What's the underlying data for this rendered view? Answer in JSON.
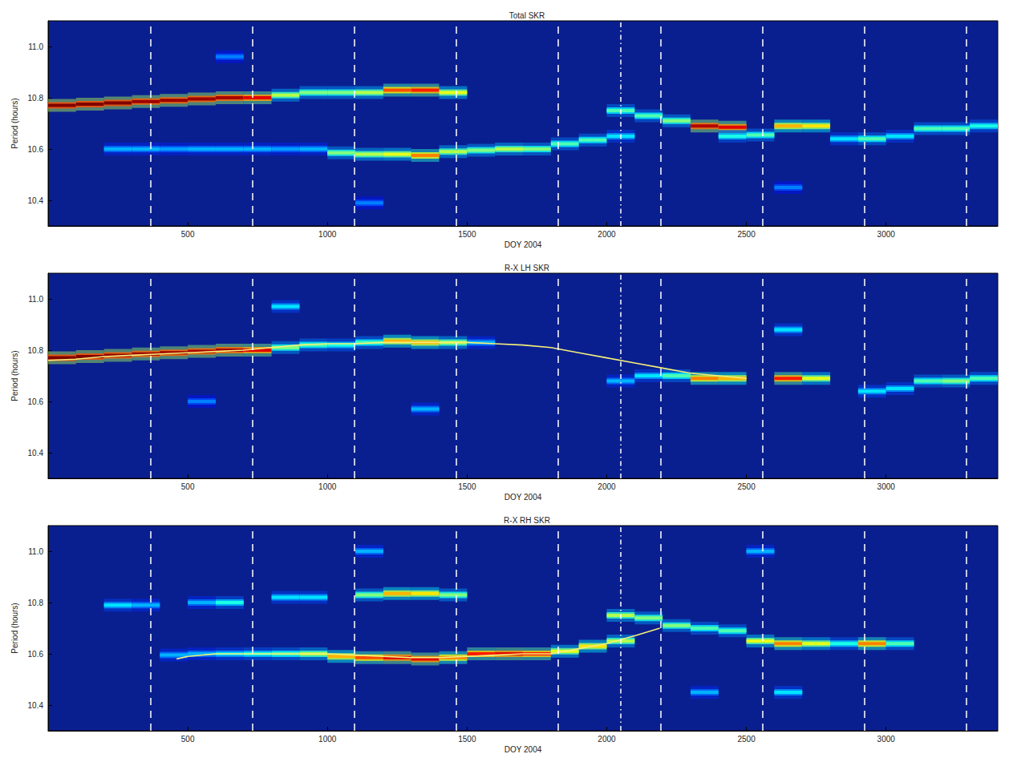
{
  "chart_data": [
    {
      "type": "heatmap",
      "title": "Total SKR",
      "xlabel": "DOY 2004",
      "ylabel": "Period (hours)",
      "xlim": [
        0,
        3400
      ],
      "xticks": [
        500,
        1000,
        1500,
        2000,
        2500,
        3000
      ],
      "ylim": [
        10.3,
        11.1
      ],
      "yticks": [
        10.4,
        10.6,
        10.8,
        {
          "value": 11,
          "label": "11.0"
        }
      ],
      "grid": false,
      "zlim": [
        0,
        1
      ],
      "vlines": [
        {
          "x": 366,
          "line_style": "dashed"
        },
        {
          "x": 731,
          "line_style": "dashed"
        },
        {
          "x": 1096,
          "line_style": "dashed"
        },
        {
          "x": 1461,
          "line_style": "dashed"
        },
        {
          "x": 1827,
          "line_style": "dashed"
        },
        {
          "x": 2050,
          "line_style": "dashdot"
        },
        {
          "x": 2192,
          "line_style": "dashed"
        },
        {
          "x": 2557,
          "line_style": "dashed"
        },
        {
          "x": 2922,
          "line_style": "dashed"
        },
        {
          "x": 3288,
          "line_style": "dashed"
        }
      ],
      "cells": [
        [
          50,
          10.77,
          1.0
        ],
        [
          150,
          10.775,
          1.0
        ],
        [
          250,
          10.78,
          1.0
        ],
        [
          350,
          10.785,
          0.97
        ],
        [
          450,
          10.79,
          0.97
        ],
        [
          550,
          10.795,
          0.97
        ],
        [
          650,
          10.8,
          0.96
        ],
        [
          750,
          10.8,
          0.9
        ],
        [
          850,
          10.81,
          0.55
        ],
        [
          950,
          10.82,
          0.5
        ],
        [
          1050,
          10.82,
          0.5
        ],
        [
          1150,
          10.82,
          0.55
        ],
        [
          1250,
          10.83,
          0.8
        ],
        [
          1350,
          10.83,
          0.85
        ],
        [
          1450,
          10.82,
          0.6
        ],
        [
          250,
          10.6,
          0.3
        ],
        [
          350,
          10.6,
          0.3
        ],
        [
          450,
          10.6,
          0.28
        ],
        [
          550,
          10.6,
          0.3
        ],
        [
          650,
          10.6,
          0.3
        ],
        [
          750,
          10.6,
          0.3
        ],
        [
          850,
          10.6,
          0.28
        ],
        [
          950,
          10.6,
          0.3
        ],
        [
          1050,
          10.585,
          0.5
        ],
        [
          1150,
          10.58,
          0.55
        ],
        [
          1250,
          10.58,
          0.6
        ],
        [
          1350,
          10.575,
          0.75
        ],
        [
          1450,
          10.59,
          0.55
        ],
        [
          1550,
          10.595,
          0.5
        ],
        [
          1650,
          10.6,
          0.55
        ],
        [
          1750,
          10.6,
          0.5
        ],
        [
          1850,
          10.62,
          0.45
        ],
        [
          1950,
          10.635,
          0.45
        ],
        [
          2050,
          10.65,
          0.35
        ],
        [
          2050,
          10.75,
          0.45
        ],
        [
          2150,
          10.73,
          0.45
        ],
        [
          2250,
          10.71,
          0.5
        ],
        [
          2350,
          10.69,
          0.95
        ],
        [
          2450,
          10.685,
          0.9
        ],
        [
          2450,
          10.65,
          0.4
        ],
        [
          2550,
          10.655,
          0.45
        ],
        [
          2650,
          10.69,
          0.7
        ],
        [
          2750,
          10.69,
          0.65
        ],
        [
          2850,
          10.64,
          0.35
        ],
        [
          2950,
          10.64,
          0.45
        ],
        [
          3050,
          10.65,
          0.35
        ],
        [
          3150,
          10.68,
          0.45
        ],
        [
          3250,
          10.68,
          0.45
        ],
        [
          3350,
          10.69,
          0.4
        ],
        [
          650,
          10.96,
          0.25
        ],
        [
          1150,
          10.39,
          0.25
        ],
        [
          2650,
          10.45,
          0.25
        ]
      ]
    },
    {
      "type": "heatmap",
      "title": "R-X LH SKR",
      "xlabel": "DOY 2004",
      "ylabel": "Period (hours)",
      "xlim": [
        0,
        3400
      ],
      "xticks": [
        500,
        1000,
        1500,
        2000,
        2500,
        3000
      ],
      "ylim": [
        10.3,
        11.1
      ],
      "yticks": [
        10.4,
        10.6,
        10.8,
        {
          "value": 11,
          "label": "11.0"
        }
      ],
      "grid": false,
      "zlim": [
        0,
        1
      ],
      "vlines": [
        {
          "x": 366,
          "line_style": "dashed"
        },
        {
          "x": 731,
          "line_style": "dashed"
        },
        {
          "x": 1096,
          "line_style": "dashed"
        },
        {
          "x": 1461,
          "line_style": "dashed"
        },
        {
          "x": 1827,
          "line_style": "dashed"
        },
        {
          "x": 2050,
          "line_style": "dashdot"
        },
        {
          "x": 2192,
          "line_style": "dashed"
        },
        {
          "x": 2557,
          "line_style": "dashed"
        },
        {
          "x": 2922,
          "line_style": "dashed"
        },
        {
          "x": 3288,
          "line_style": "dashed"
        }
      ],
      "cells": [
        [
          50,
          10.77,
          1.0
        ],
        [
          150,
          10.775,
          1.0
        ],
        [
          250,
          10.78,
          0.98
        ],
        [
          350,
          10.785,
          0.97
        ],
        [
          450,
          10.79,
          0.97
        ],
        [
          550,
          10.795,
          0.96
        ],
        [
          650,
          10.8,
          0.96
        ],
        [
          750,
          10.8,
          0.9
        ],
        [
          850,
          10.81,
          0.5
        ],
        [
          950,
          10.82,
          0.45
        ],
        [
          1050,
          10.82,
          0.4
        ],
        [
          1150,
          10.83,
          0.45
        ],
        [
          1250,
          10.835,
          0.7
        ],
        [
          1350,
          10.83,
          0.7
        ],
        [
          1450,
          10.83,
          0.55
        ],
        [
          1550,
          10.83,
          0.3
        ],
        [
          2050,
          10.68,
          0.3
        ],
        [
          2150,
          10.7,
          0.35
        ],
        [
          2250,
          10.7,
          0.45
        ],
        [
          2350,
          10.69,
          0.75
        ],
        [
          2450,
          10.69,
          0.7
        ],
        [
          2650,
          10.69,
          0.85
        ],
        [
          2750,
          10.69,
          0.6
        ],
        [
          2650,
          10.88,
          0.35
        ],
        [
          2950,
          10.64,
          0.35
        ],
        [
          3050,
          10.65,
          0.35
        ],
        [
          3150,
          10.68,
          0.45
        ],
        [
          3250,
          10.68,
          0.5
        ],
        [
          3350,
          10.69,
          0.45
        ],
        [
          550,
          10.6,
          0.25
        ],
        [
          1350,
          10.57,
          0.3
        ],
        [
          850,
          10.97,
          0.35
        ]
      ],
      "series": [
        {
          "type": "line",
          "color": "#f5ef7a",
          "x": [
            0,
            100,
            200,
            300,
            400,
            500,
            600,
            700,
            800,
            900,
            1000,
            1100,
            1200,
            1300,
            1400,
            1500,
            1600,
            1700,
            1800,
            1900,
            2000,
            2100,
            2200,
            2300,
            2400,
            2500
          ],
          "values": [
            10.76,
            10.765,
            10.775,
            10.78,
            10.785,
            10.79,
            10.795,
            10.8,
            10.81,
            10.82,
            10.825,
            10.825,
            10.83,
            10.83,
            10.83,
            10.83,
            10.825,
            10.82,
            10.81,
            10.79,
            10.77,
            10.75,
            10.73,
            10.71,
            10.7,
            10.69
          ]
        }
      ]
    },
    {
      "type": "heatmap",
      "title": "R-X RH SKR",
      "xlabel": "DOY 2004",
      "ylabel": "Period (hours)",
      "xlim": [
        0,
        3400
      ],
      "xticks": [
        500,
        1000,
        1500,
        2000,
        2500,
        3000
      ],
      "ylim": [
        10.3,
        11.1
      ],
      "yticks": [
        10.4,
        10.6,
        10.8,
        {
          "value": 11,
          "label": "11.0"
        }
      ],
      "grid": false,
      "zlim": [
        0,
        1
      ],
      "vlines": [
        {
          "x": 366,
          "line_style": "dashed"
        },
        {
          "x": 731,
          "line_style": "dashed"
        },
        {
          "x": 1096,
          "line_style": "dashed"
        },
        {
          "x": 1461,
          "line_style": "dashed"
        },
        {
          "x": 1827,
          "line_style": "dashed"
        },
        {
          "x": 2050,
          "line_style": "dashdot"
        },
        {
          "x": 2192,
          "line_style": "dashed"
        },
        {
          "x": 2557,
          "line_style": "dashed"
        },
        {
          "x": 2922,
          "line_style": "dashed"
        },
        {
          "x": 3288,
          "line_style": "dashed"
        }
      ],
      "cells": [
        [
          450,
          10.595,
          0.3
        ],
        [
          550,
          10.6,
          0.3
        ],
        [
          650,
          10.6,
          0.35
        ],
        [
          750,
          10.6,
          0.4
        ],
        [
          850,
          10.6,
          0.45
        ],
        [
          950,
          10.6,
          0.55
        ],
        [
          1050,
          10.59,
          0.7
        ],
        [
          1150,
          10.585,
          0.8
        ],
        [
          1250,
          10.585,
          0.9
        ],
        [
          1350,
          10.58,
          0.9
        ],
        [
          1450,
          10.585,
          0.75
        ],
        [
          1550,
          10.6,
          0.85
        ],
        [
          1650,
          10.6,
          0.9
        ],
        [
          1750,
          10.6,
          0.85
        ],
        [
          1850,
          10.61,
          0.6
        ],
        [
          1950,
          10.63,
          0.65
        ],
        [
          2050,
          10.65,
          0.55
        ],
        [
          2050,
          10.75,
          0.55
        ],
        [
          2150,
          10.74,
          0.5
        ],
        [
          2250,
          10.71,
          0.5
        ],
        [
          2350,
          10.7,
          0.45
        ],
        [
          2450,
          10.69,
          0.45
        ],
        [
          2550,
          10.65,
          0.6
        ],
        [
          2650,
          10.64,
          0.75
        ],
        [
          2750,
          10.64,
          0.6
        ],
        [
          2850,
          10.64,
          0.4
        ],
        [
          2950,
          10.64,
          0.75
        ],
        [
          3050,
          10.64,
          0.45
        ],
        [
          250,
          10.79,
          0.35
        ],
        [
          350,
          10.79,
          0.3
        ],
        [
          550,
          10.8,
          0.3
        ],
        [
          650,
          10.8,
          0.4
        ],
        [
          850,
          10.82,
          0.35
        ],
        [
          950,
          10.82,
          0.35
        ],
        [
          1150,
          10.83,
          0.5
        ],
        [
          1250,
          10.835,
          0.7
        ],
        [
          1350,
          10.835,
          0.65
        ],
        [
          1450,
          10.83,
          0.5
        ],
        [
          1150,
          11.0,
          0.3
        ],
        [
          2550,
          11.0,
          0.3
        ],
        [
          2650,
          10.45,
          0.35
        ],
        [
          2350,
          10.45,
          0.3
        ]
      ],
      "series": [
        {
          "type": "line",
          "color": "#f5ef7a",
          "x": [
            460,
            500,
            600,
            700,
            800,
            900,
            1000,
            1100,
            1200,
            1300,
            1400,
            1500,
            1600,
            1700,
            1800,
            1900,
            2000,
            2100,
            2190
          ],
          "values": [
            10.58,
            10.59,
            10.6,
            10.6,
            10.6,
            10.6,
            10.6,
            10.595,
            10.59,
            10.585,
            10.585,
            10.59,
            10.595,
            10.6,
            10.6,
            10.62,
            10.64,
            10.67,
            10.7
          ]
        }
      ]
    }
  ]
}
